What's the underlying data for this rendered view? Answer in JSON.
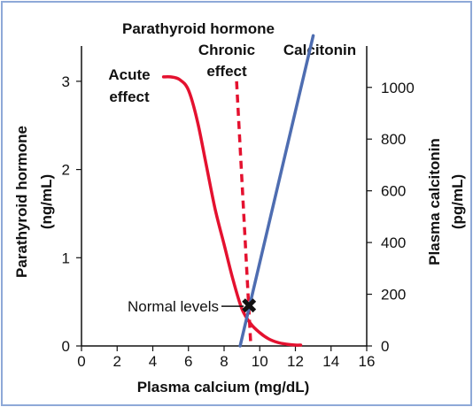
{
  "chart_data": {
    "type": "line",
    "title": "Parathyroid hormone",
    "xlabel": "Plasma calcium (mg/dL)",
    "ylabel_left_line1": "Parathyroid hormone",
    "ylabel_left_line2": "(ng/mL)",
    "ylabel_right_line1": "Plasma calcitonin",
    "ylabel_right_line2": "(pg/mL)",
    "xlim": [
      0,
      16
    ],
    "ylim_left": [
      0,
      3.4
    ],
    "ylim_right": [
      0,
      1160
    ],
    "x_ticks": [
      "0",
      "2",
      "4",
      "6",
      "8",
      "10",
      "12",
      "14",
      "16"
    ],
    "y_left_ticks": [
      "0",
      "1",
      "2",
      "3"
    ],
    "y_right_ticks": [
      "0",
      "200",
      "400",
      "600",
      "800",
      "1000"
    ],
    "series": [
      {
        "name": "Acute effect",
        "axis": "left",
        "color": "#e4112f",
        "style": "solid",
        "x": [
          4.6,
          5.0,
          5.5,
          6.0,
          6.5,
          7.0,
          7.5,
          8.0,
          8.5,
          9.0,
          9.5,
          10.0,
          10.5,
          11.0,
          11.5,
          12.0,
          12.3
        ],
        "y": [
          3.05,
          3.05,
          3.02,
          2.9,
          2.55,
          2.05,
          1.55,
          1.15,
          0.75,
          0.42,
          0.25,
          0.15,
          0.08,
          0.04,
          0.02,
          0.01,
          0.01
        ]
      },
      {
        "name": "Chronic effect",
        "axis": "left",
        "color": "#e4112f",
        "style": "dashed",
        "x": [
          8.7,
          9.5
        ],
        "y": [
          3.0,
          0.0
        ]
      },
      {
        "name": "Calcitonin",
        "axis": "right",
        "color": "#4e6db1",
        "style": "solid",
        "x": [
          8.9,
          13.0
        ],
        "y": [
          0,
          1200
        ]
      }
    ],
    "annotations": [
      {
        "text": "Normal levels",
        "x": 9.4,
        "y": 0.45,
        "marker": "✖"
      }
    ],
    "labels": {
      "acute_line1": "Acute",
      "acute_line2": "effect",
      "chronic_line1": "Chronic",
      "chronic_line2": "effect",
      "calcitonin": "Calcitonin"
    },
    "grid": false
  }
}
